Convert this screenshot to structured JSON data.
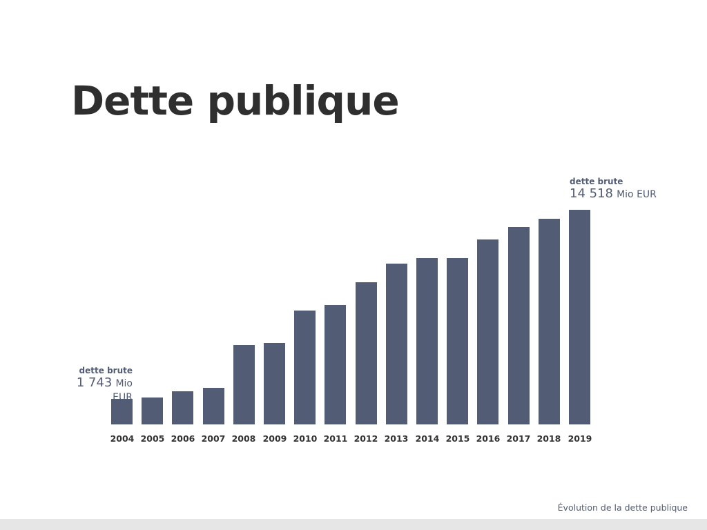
{
  "title": "Dette publique",
  "caption": "Évolution de la dette publique",
  "colors": {
    "bar": "#525c74",
    "title": "#2f2f2f",
    "footer": "#e6e6e6"
  },
  "annotations": {
    "first": {
      "label": "dette brute",
      "value": "1 743",
      "unit": "Mio EUR"
    },
    "last": {
      "label": "dette brute",
      "value": "14 518",
      "unit": "Mio EUR"
    }
  },
  "chart_data": {
    "type": "bar",
    "title": "Dette publique",
    "subtitle": "Évolution de la dette publique",
    "xlabel": "",
    "ylabel": "dette brute (Mio EUR)",
    "categories": [
      "2004",
      "2005",
      "2006",
      "2007",
      "2008",
      "2009",
      "2010",
      "2011",
      "2012",
      "2013",
      "2014",
      "2015",
      "2016",
      "2017",
      "2018",
      "2019"
    ],
    "values": [
      1743,
      1820,
      2240,
      2470,
      5370,
      5510,
      7700,
      8080,
      9620,
      10880,
      11250,
      11250,
      12510,
      13350,
      13910,
      14518
    ],
    "annotations": [
      {
        "x": "2004",
        "text": "dette brute 1 743 Mio EUR"
      },
      {
        "x": "2019",
        "text": "dette brute 14 518 Mio EUR"
      }
    ],
    "ylim": [
      0,
      14518
    ],
    "grid": false,
    "legend": "none"
  }
}
